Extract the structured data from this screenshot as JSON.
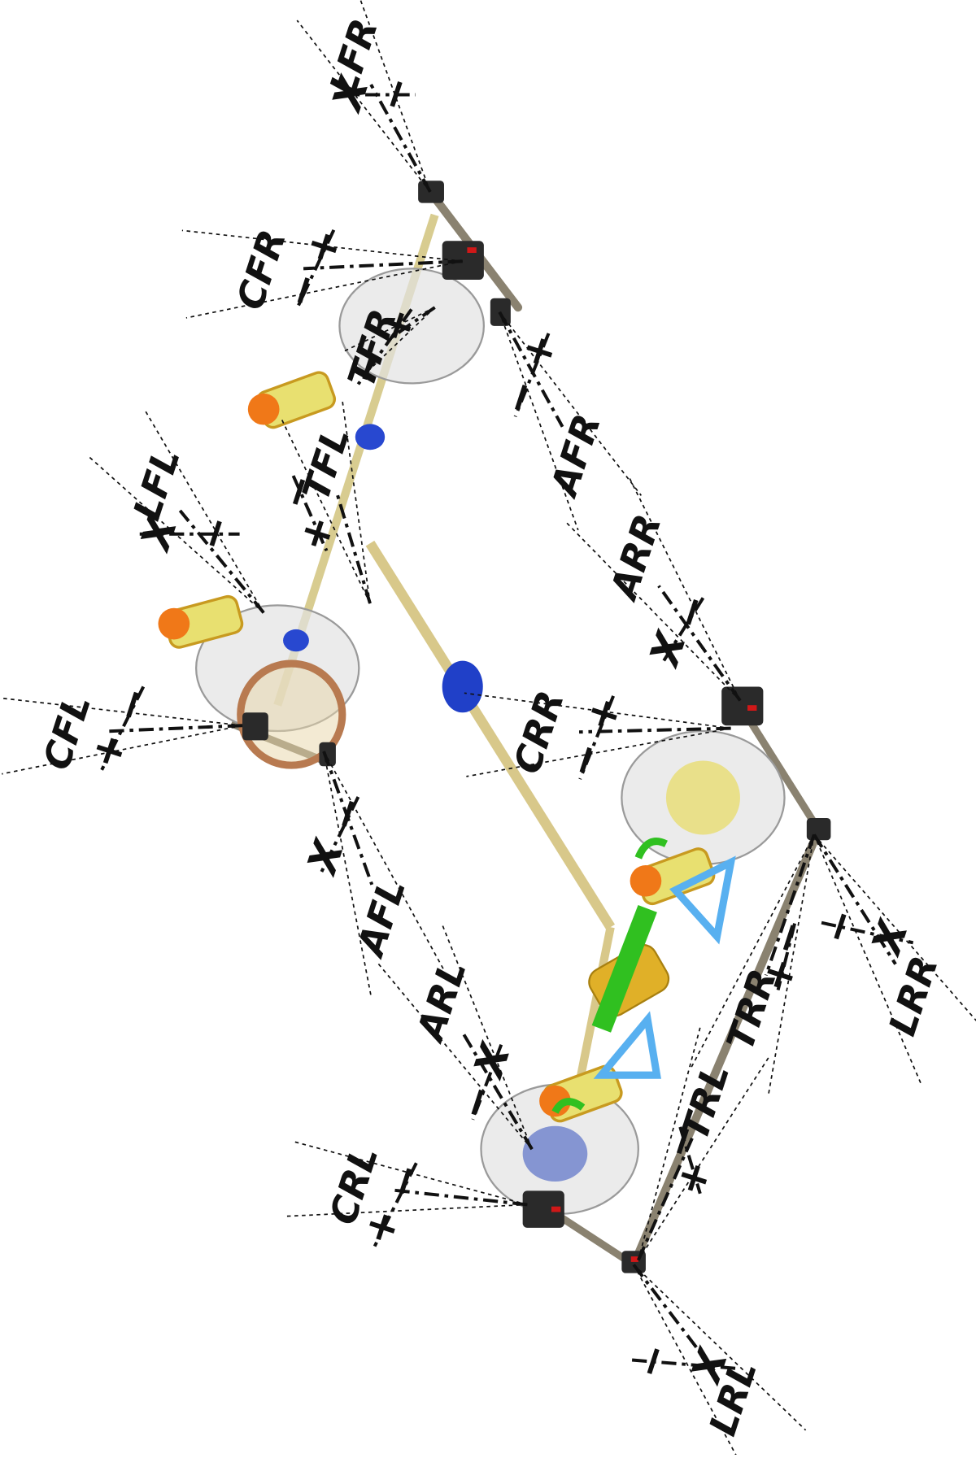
{
  "labels": [
    {
      "name": "LFR",
      "signs": [
        "X",
        "−"
      ]
    },
    {
      "name": "CFR",
      "signs": [
        "+",
        "−"
      ]
    },
    {
      "name": "AFR",
      "signs": [
        "+",
        "−"
      ]
    },
    {
      "name": "TFR",
      "signs": [
        "+",
        "−"
      ]
    },
    {
      "name": "TFL",
      "signs": [
        "−",
        "+"
      ]
    },
    {
      "name": "LFL",
      "signs": [
        "X",
        "−"
      ]
    },
    {
      "name": "CFL",
      "signs": [
        "−",
        "+"
      ]
    },
    {
      "name": "AFL",
      "signs": [
        "−",
        "X"
      ]
    },
    {
      "name": "ARR",
      "signs": [
        "−",
        "X"
      ]
    },
    {
      "name": "CRR",
      "signs": [
        "+",
        "−"
      ]
    },
    {
      "name": "TRR",
      "signs": [
        "−",
        "+"
      ]
    },
    {
      "name": "LRR",
      "signs": [
        "−",
        "X"
      ]
    },
    {
      "name": "ARL",
      "signs": [
        "X",
        "−"
      ]
    },
    {
      "name": "CRL",
      "signs": [
        "−",
        "+"
      ]
    },
    {
      "name": "TRL",
      "signs": [
        "−",
        "+"
      ]
    },
    {
      "name": "LRL",
      "signs": [
        "−",
        "X"
      ]
    }
  ]
}
